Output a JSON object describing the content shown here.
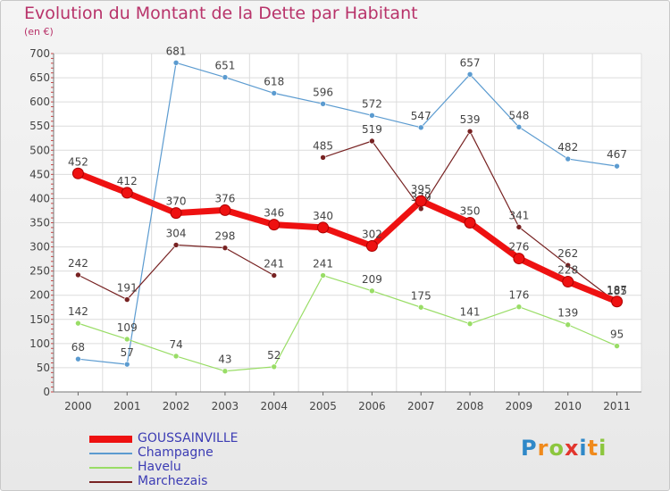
{
  "title": "Evolution du Montant de la Dette par Habitant",
  "subtitle": "(en €)",
  "logo": {
    "text": "Proxiti",
    "colors": [
      "#2f88c8",
      "#f08a1c",
      "#8cc63e",
      "#e2352d"
    ]
  },
  "chart_data": {
    "type": "line",
    "title": "Evolution du Montant de la Dette par Habitant",
    "subtitle": "(en €)",
    "x": [
      "2000",
      "2001",
      "2002",
      "2003",
      "2004",
      "2005",
      "2006",
      "2007",
      "2008",
      "2009",
      "2010",
      "2011"
    ],
    "ylim": [
      0,
      700
    ],
    "yticks": [
      0,
      50,
      100,
      150,
      200,
      250,
      300,
      350,
      400,
      450,
      500,
      550,
      600,
      650,
      700
    ],
    "grid": true,
    "legend_position": "bottom-left",
    "series": [
      {
        "name": "GOUSSAINVILLE",
        "color": "#ee1111",
        "width": 7,
        "marker": 6,
        "values": [
          452,
          412,
          370,
          376,
          346,
          340,
          302,
          395,
          350,
          276,
          228,
          187
        ]
      },
      {
        "name": "Champagne",
        "color": "#5b9bd0",
        "width": 1.2,
        "marker": 3,
        "values": [
          68,
          57,
          681,
          651,
          618,
          596,
          572,
          547,
          657,
          548,
          482,
          467
        ]
      },
      {
        "name": "Havelu",
        "color": "#99dd66",
        "width": 1.2,
        "marker": 3,
        "values": [
          142,
          109,
          74,
          43,
          52,
          241,
          209,
          175,
          141,
          176,
          139,
          95
        ]
      },
      {
        "name": "Marchezais",
        "color": "#772222",
        "width": 1.2,
        "marker": 3,
        "values": [
          242,
          191,
          304,
          298,
          241,
          485,
          519,
          379,
          539,
          341,
          262,
          185
        ],
        "gaps_after": [
          4
        ]
      }
    ]
  }
}
